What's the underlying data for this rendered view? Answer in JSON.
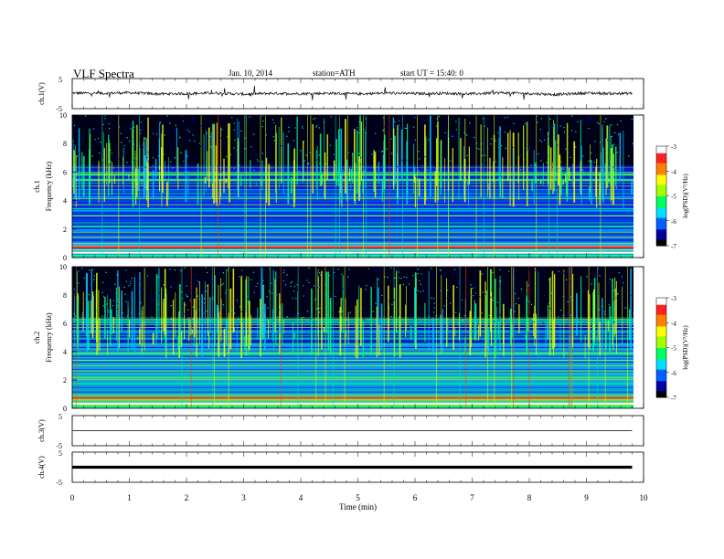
{
  "header": {
    "title": "VLF  Spectra",
    "date": "Jan. 10, 2014",
    "station": "station=ATH",
    "start": "start  UT  =   15:40: 0"
  },
  "colors": {
    "colormap": [
      "#000000",
      "#0a0a8c",
      "#0000ff",
      "#00c8ff",
      "#00ff80",
      "#c8ff00",
      "#ffff00",
      "#ff8000",
      "#ff0000",
      "#ffffff"
    ]
  },
  "chart_data": [
    {
      "type": "line",
      "panel": "ch1",
      "ylabel": "ch.1(V)",
      "ylim": [
        -5,
        5
      ],
      "yticks": [
        "5",
        "-5"
      ],
      "x": [
        0,
        0.5,
        1,
        1.5,
        2,
        2.5,
        3,
        3.5,
        4,
        4.5,
        5,
        5.5,
        6,
        6.5,
        7,
        7.5,
        8,
        8.5,
        9,
        9.5,
        9.8
      ],
      "values": [
        0.2,
        0.1,
        0.3,
        -0.1,
        0.0,
        0.2,
        -0.2,
        0.1,
        0.0,
        0.1,
        -0.1,
        0.2,
        0.0,
        0.1,
        -0.1,
        0.3,
        0.0,
        -0.3,
        0.2,
        0.0,
        0.1
      ]
    },
    {
      "type": "heatmap",
      "panel": "ch1",
      "ylabel": "ch.1\nFrequency  (kHz)",
      "ylabel_lines": [
        "ch.1",
        "Frequency  (kHz)"
      ],
      "yticks": [
        "0",
        "2",
        "4",
        "6",
        "8",
        "10"
      ],
      "ylim": [
        0,
        10
      ],
      "xlim": [
        0,
        9.8
      ],
      "colorbar": {
        "label": "log(PSD)(V²/Hz)",
        "ticks": [
          "-3",
          "-4",
          "-5",
          "-6",
          "-7"
        ],
        "range": [
          -7,
          -3
        ]
      }
    },
    {
      "type": "heatmap",
      "panel": "ch2",
      "ylabel": "ch.2\nFrequency  (kHz)",
      "ylabel_lines": [
        "ch.2",
        "Frequency  (kHz)"
      ],
      "yticks": [
        "0",
        "2",
        "4",
        "6",
        "8",
        "10"
      ],
      "ylim": [
        0,
        10
      ],
      "xlim": [
        0,
        9.8
      ],
      "colorbar": {
        "label": "log(PSD)(V²/Hz)",
        "ticks": [
          "-3",
          "-4",
          "-5",
          "-6",
          "-7"
        ],
        "range": [
          -7,
          -3
        ]
      }
    },
    {
      "type": "line",
      "panel": "ch3",
      "ylabel": "ch.3(V)",
      "ylim": [
        -5,
        5
      ],
      "yticks": [
        "5",
        "-5"
      ],
      "x": [
        0,
        9.8
      ],
      "values": [
        0,
        0
      ]
    },
    {
      "type": "line",
      "panel": "ch4",
      "ylabel": "ch.4(V)",
      "ylim": [
        -5,
        5
      ],
      "yticks": [
        "5",
        "-5"
      ],
      "x": [
        0,
        9.8
      ],
      "values": [
        0,
        0
      ]
    },
    {
      "type": "axis",
      "xlabel": "Time  (min)",
      "xlim": [
        0,
        10
      ],
      "xticks": [
        "0",
        "1",
        "2",
        "3",
        "4",
        "5",
        "6",
        "7",
        "8",
        "9",
        "10"
      ]
    }
  ]
}
